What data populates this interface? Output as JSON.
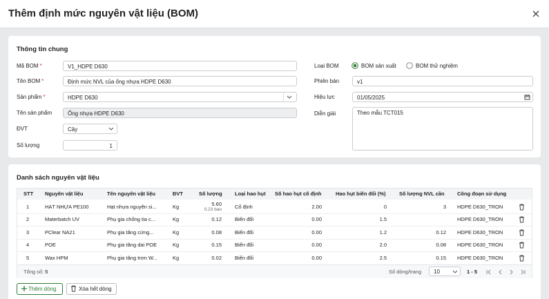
{
  "dialog": {
    "title": "Thêm định mức nguyên vật liệu (BOM)"
  },
  "general": {
    "title": "Thông tin chung",
    "fields": {
      "bom_code": {
        "label": "Mã BOM",
        "required": "*",
        "value": "V1_HDPE D630"
      },
      "bom_name": {
        "label": "Tên BOM",
        "required": "*",
        "value": "Định mức NVL của ống nhựa HDPE D630"
      },
      "product": {
        "label": "Sản phẩm",
        "required": "*",
        "value": "HDPE D630"
      },
      "product_name": {
        "label": "Tên sản phẩm",
        "value": "Ống nhựa HDPE D630"
      },
      "unit": {
        "label": "ĐVT",
        "value": "Cây"
      },
      "quantity": {
        "label": "Số lượng",
        "value": "1"
      },
      "bom_type": {
        "label": "Loại BOM",
        "options": [
          "BOM sản xuất",
          "BOM thử nghiệm"
        ]
      },
      "version": {
        "label": "Phiên bản",
        "value": "v1"
      },
      "effective": {
        "label": "Hiệu lực",
        "value": "01/05/2025"
      },
      "note": {
        "label": "Diễn giải",
        "value": "Theo mẫu TCT015"
      }
    }
  },
  "materials": {
    "title": "Danh sách nguyên vật liệu",
    "columns": [
      "STT",
      "Nguyên vật liệu",
      "Tên nguyên vật liệu",
      "ĐVT",
      "Số lượng",
      "Loại hao hụt",
      "Số hao hụt cố định",
      "Hao hụt biến đổi (%)",
      "Số lượng NVL cần",
      "Công đoạn sử dụng"
    ],
    "rows": [
      {
        "stt": "1",
        "code": "HẠT NHỰA PE100",
        "name": "Hạt nhựa nguyên si...",
        "unit": "Kg",
        "qty": "5.60",
        "qty_sub": "0.23 bao",
        "loss_type": "Cố định",
        "fixed": "2.00",
        "var": "0",
        "need": "3",
        "stage": "HDPE D630_TRON"
      },
      {
        "stt": "2",
        "code": "Materbatch UV",
        "name": "Phụ gia chống tia c...",
        "unit": "Kg",
        "qty": "0.12",
        "loss_type": "Biến đổi",
        "fixed": "0.00",
        "var": "1.5",
        "stage": "HDPE D630_TRON"
      },
      {
        "stt": "3",
        "code": "PClear NA21",
        "name": "Phụ gia tăng cứng...",
        "unit": "Kg",
        "qty": "0.08",
        "loss_type": "Biến đổi",
        "fixed": "0.00",
        "var": "1.2",
        "need": "0.12",
        "stage": "HDPE D630_TRON"
      },
      {
        "stt": "4",
        "code": "POE",
        "name": "Phụ gia tăng dai POE",
        "unit": "Kg",
        "qty": "0.15",
        "loss_type": "Biến đổi",
        "fixed": "0.00",
        "var": "2.0",
        "need": "0.08",
        "stage": "HDPE D630_TRON"
      },
      {
        "stt": "5",
        "code": "Wax HPM",
        "name": "Phụ gia tăng trơn W...",
        "unit": "Kg",
        "qty": "0.02",
        "loss_type": "Biến đổi",
        "fixed": "0.00",
        "var": "2.5",
        "need": "0.15",
        "stage": "HDPE D630_TRON"
      }
    ],
    "footer": {
      "total_label": "Tổng số:",
      "total": "5",
      "page_size_label": "Số dòng/trang",
      "page_size": "10",
      "range": "1 - 5"
    },
    "buttons": {
      "add": "Thêm dòng",
      "clear": "Xóa hết dòng"
    }
  }
}
